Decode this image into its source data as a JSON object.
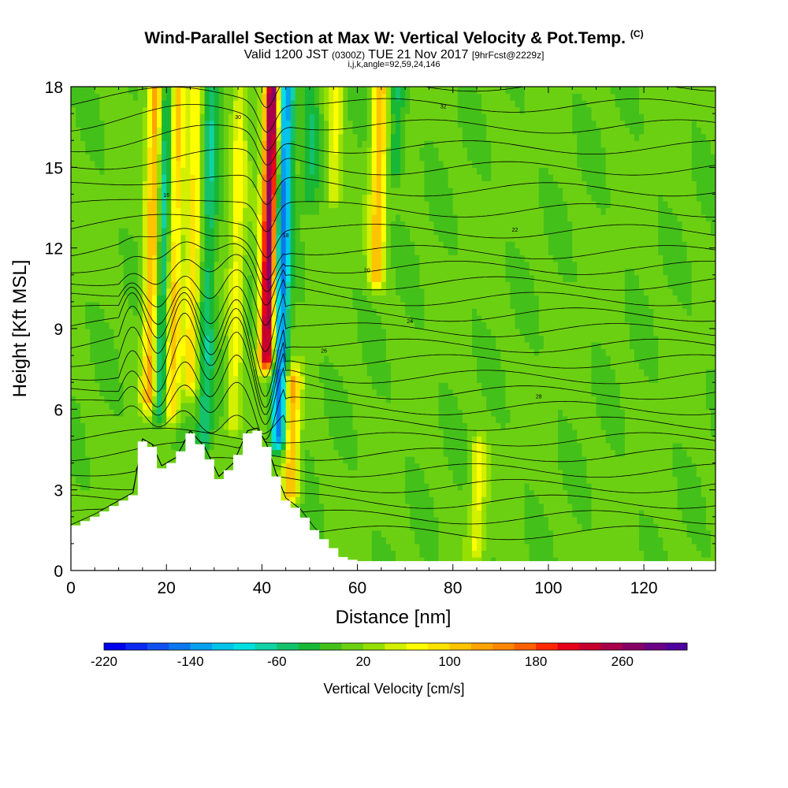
{
  "chart_data": {
    "type": "heatmap",
    "title": "Wind-Parallel Section at Max W: Vertical Velocity & Pot.Temp.",
    "title_mark": "(C)",
    "subtitle_main": "Valid 1200 JST",
    "subtitle_utc": "(0300Z)",
    "subtitle_date": "TUE 21 Nov 2017",
    "subtitle_fcst": "[9hrFcst@2229z]",
    "subtitle2": "i,j,k,angle=92,59,24,146",
    "xlabel": "Distance [nm]",
    "ylabel": "Height [Kft MSL]",
    "xlim": [
      0,
      135
    ],
    "ylim": [
      0,
      18
    ],
    "xticks": [
      0,
      20,
      40,
      60,
      80,
      100,
      120
    ],
    "yticks": [
      0,
      3,
      6,
      9,
      12,
      15,
      18
    ],
    "colorbar": {
      "label": "Vertical Velocity [cm/s]",
      "min": -220,
      "max": 320,
      "step": 20,
      "tick_values": [
        -220,
        -140,
        -60,
        20,
        100,
        180,
        260
      ],
      "colors": [
        "#0000ee",
        "#0a2af2",
        "#1050f0",
        "#0a78ee",
        "#06a0f0",
        "#02c4ea",
        "#00e0e0",
        "#10d2a4",
        "#14c26c",
        "#18b836",
        "#44c01a",
        "#6cd012",
        "#96e000",
        "#d2f000",
        "#ffff00",
        "#ffe200",
        "#ffc400",
        "#ffa400",
        "#ff8600",
        "#ff6000",
        "#ff2800",
        "#e8001a",
        "#c8002e",
        "#a8004a",
        "#880066",
        "#6c0084",
        "#5000a0"
      ]
    },
    "vertical_velocity_field": {
      "background_cm_s": 5,
      "features": [
        {
          "x": 16.5,
          "y_from": 6.5,
          "y_to": 18,
          "w": 130
        },
        {
          "x": 18.5,
          "y_from": 6,
          "y_to": 18,
          "w": -90
        },
        {
          "x": 21,
          "y_from": 6,
          "y_to": 18,
          "w": 100
        },
        {
          "x": 25,
          "y_from": 7,
          "y_to": 18,
          "w": 80
        },
        {
          "x": 28,
          "y_from": 5,
          "y_to": 18,
          "w": -60
        },
        {
          "x": 34,
          "y_from": 5.5,
          "y_to": 18,
          "w": 60
        },
        {
          "x": 41,
          "y_from": 8,
          "y_to": 18,
          "w": 270
        },
        {
          "x": 43.5,
          "y_from": 5,
          "y_to": 18,
          "w": -160
        },
        {
          "x": 46,
          "y_from": 3,
          "y_to": 7,
          "w": 120
        },
        {
          "x": 50,
          "y_from": 14,
          "y_to": 18,
          "w": -40
        },
        {
          "x": 55,
          "y_from": 14,
          "y_to": 18,
          "w": 60
        },
        {
          "x": 64,
          "y_from": 11,
          "y_to": 18,
          "w": 110
        },
        {
          "x": 68,
          "y_from": 15,
          "y_to": 18,
          "w": -50
        },
        {
          "x": 85,
          "y_from": 1,
          "y_to": 4.5,
          "w": 60
        }
      ]
    },
    "terrain_kft": [
      [
        0,
        1.6
      ],
      [
        5,
        2.0
      ],
      [
        9,
        2.4
      ],
      [
        13,
        2.8
      ],
      [
        15,
        4.8
      ],
      [
        17,
        4.6
      ],
      [
        19,
        3.8
      ],
      [
        22,
        4.1
      ],
      [
        25,
        5.1
      ],
      [
        28,
        4.5
      ],
      [
        31,
        3.4
      ],
      [
        34,
        3.9
      ],
      [
        37,
        5.1
      ],
      [
        39,
        5.2
      ],
      [
        41,
        4.6
      ],
      [
        43,
        3.5
      ],
      [
        45,
        2.6
      ],
      [
        48,
        2.2
      ],
      [
        51,
        1.5
      ],
      [
        54,
        1.0
      ],
      [
        57,
        0.5
      ],
      [
        60,
        0.35
      ],
      [
        135,
        0.35
      ]
    ],
    "isentropes": {
      "labels": [
        "16",
        "18",
        "20",
        "22",
        "24",
        "26",
        "28",
        "30",
        "32"
      ],
      "count": 30
    }
  }
}
